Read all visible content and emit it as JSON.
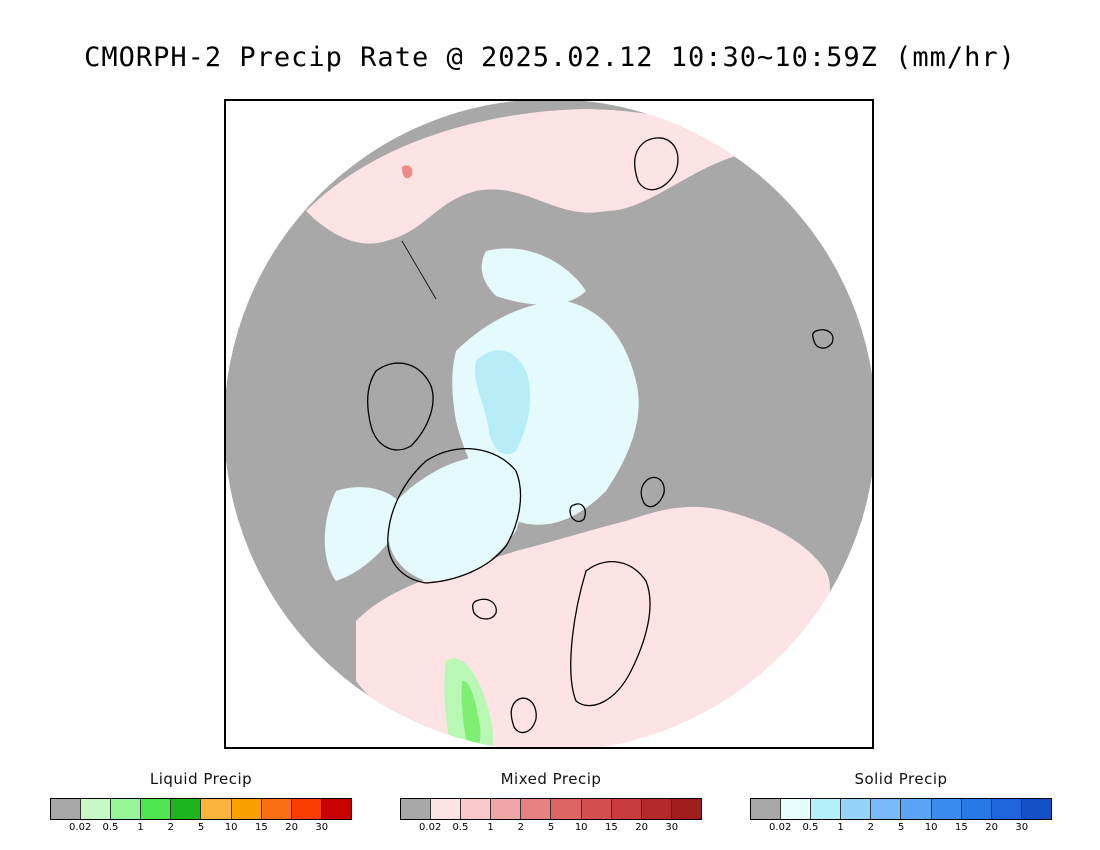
{
  "title": "CMORPH-2 Precip Rate @ 2025.02.12 10:30~10:59Z (mm/hr)",
  "map": {
    "colors": {
      "nodata": "#a8a8a8",
      "mixed_light": "#fde3e3",
      "solid_light": "#e4fafd",
      "solid_mid": "#b6edf6",
      "liquid_light": "#b9f7b4",
      "liquid_mid": "#7fef74",
      "mixed_mid": "#ee8a8a",
      "coast": "#000000",
      "border": "#000000"
    }
  },
  "legends": [
    {
      "title": "Liquid Precip",
      "ticks": [
        "0.02",
        "0.5",
        "1",
        "2",
        "5",
        "10",
        "15",
        "20",
        "30"
      ],
      "colors": [
        "#a8a8a8",
        "#c8fac8",
        "#96f596",
        "#50e650",
        "#1eb41e",
        "#fab43c",
        "#faa000",
        "#fa6e14",
        "#fa3c00",
        "#c80000"
      ]
    },
    {
      "title": "Mixed Precip",
      "ticks": [
        "0.02",
        "0.5",
        "1",
        "2",
        "5",
        "10",
        "15",
        "20",
        "30"
      ],
      "colors": [
        "#a8a8a8",
        "#fde3e3",
        "#fac8c8",
        "#f0a5a5",
        "#e68282",
        "#dc6464",
        "#d25050",
        "#c83c3c",
        "#b42828",
        "#a01e1e"
      ]
    },
    {
      "title": "Solid Precip",
      "ticks": [
        "0.02",
        "0.5",
        "1",
        "2",
        "5",
        "10",
        "15",
        "20",
        "30"
      ],
      "colors": [
        "#a8a8a8",
        "#e6fdfd",
        "#b4f0fa",
        "#96d2fa",
        "#78b9fa",
        "#5aa5f5",
        "#3c8cf0",
        "#2878e6",
        "#1e64dc",
        "#1450c8"
      ]
    }
  ]
}
